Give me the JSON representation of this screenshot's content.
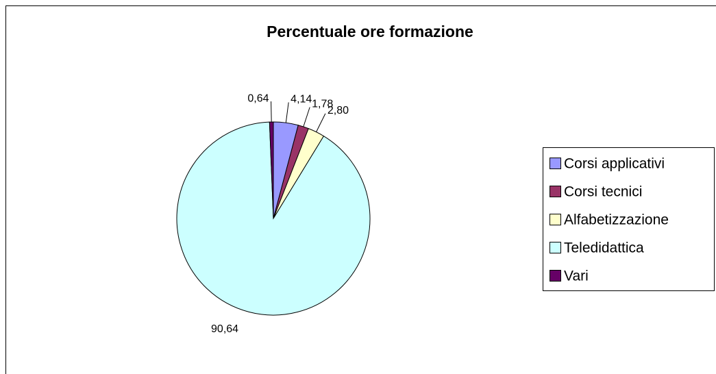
{
  "chart_data": {
    "type": "pie",
    "title": "Percentuale ore formazione",
    "categories": [
      "Corsi applicativi",
      "Corsi tecnici",
      "Alfabetizzazione",
      "Teledidattica",
      "Vari"
    ],
    "values": [
      4.14,
      1.78,
      2.8,
      90.64,
      0.64
    ],
    "value_labels": [
      "4,14",
      "1,78",
      "2,80",
      "90,64",
      "0,64"
    ],
    "colors": [
      "#9999ff",
      "#993366",
      "#ffffcc",
      "#ccffff",
      "#660066"
    ]
  }
}
